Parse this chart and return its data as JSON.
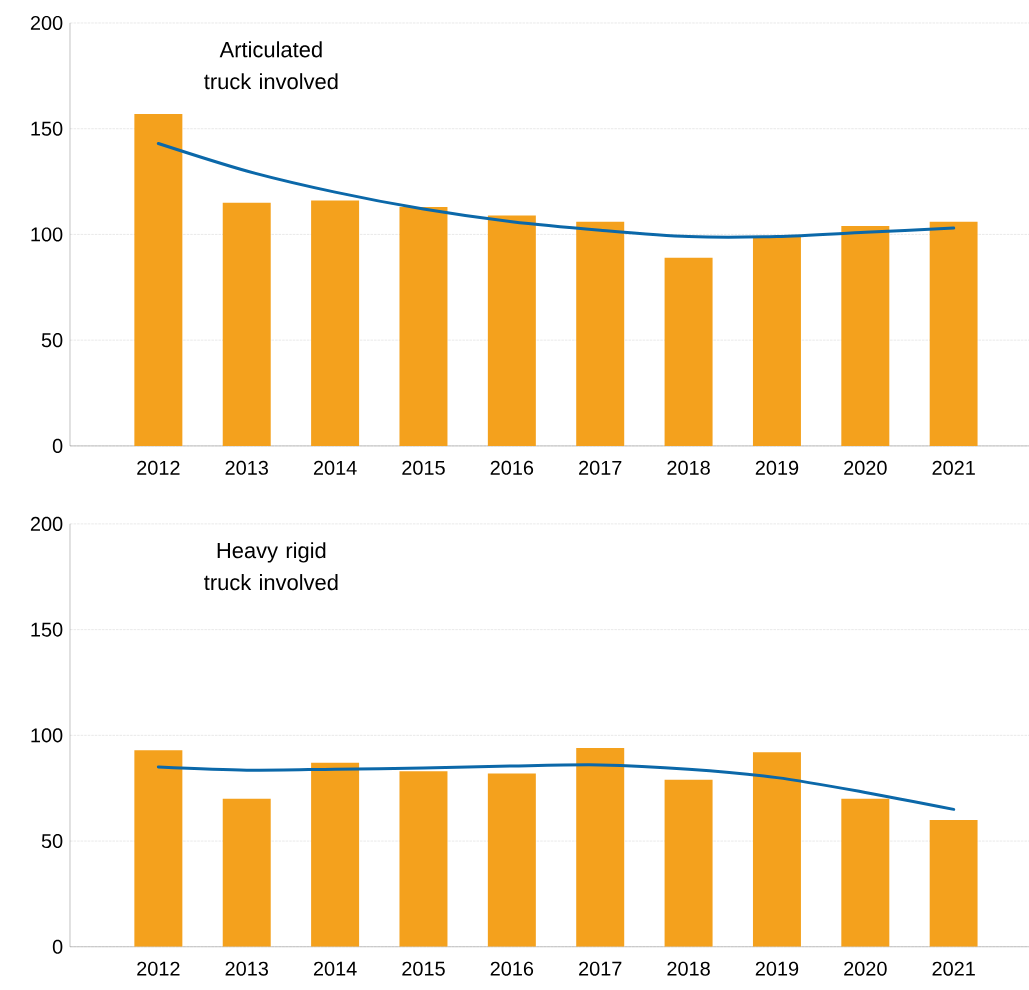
{
  "chart_data": [
    {
      "type": "bar",
      "categories": [
        "2012",
        "2013",
        "2014",
        "2015",
        "2016",
        "2017",
        "2018",
        "2019",
        "2020",
        "2021"
      ],
      "series": [
        {
          "color": "#f4a11d",
          "values": [
            157,
            115,
            116,
            113,
            109,
            106,
            89,
            99,
            104,
            106
          ]
        },
        {
          "type": "line",
          "color": "#0b68a9",
          "values": [
            143,
            130,
            120,
            112,
            106,
            102,
            99,
            99,
            101,
            103
          ]
        }
      ],
      "ylim": [
        0,
        200
      ],
      "yticks": [
        0,
        50,
        100,
        150,
        200
      ],
      "grid": "y",
      "annotations": [
        "Articulated truck involved"
      ]
    },
    {
      "type": "bar",
      "categories": [
        "2012",
        "2013",
        "2014",
        "2015",
        "2016",
        "2017",
        "2018",
        "2019",
        "2020",
        "2021"
      ],
      "series": [
        {
          "color": "#f4a11d",
          "values": [
            93,
            70,
            87,
            83,
            82,
            94,
            79,
            92,
            70,
            60
          ]
        },
        {
          "type": "line",
          "color": "#0b68a9",
          "values": [
            85,
            83.5,
            84,
            84.5,
            85.5,
            86,
            84,
            80,
            73,
            65
          ]
        }
      ],
      "ylim": [
        0,
        200
      ],
      "yticks": [
        0,
        50,
        100,
        150,
        200
      ],
      "grid": "y",
      "annotations": [
        "Heavy rigid truck involved"
      ]
    }
  ]
}
